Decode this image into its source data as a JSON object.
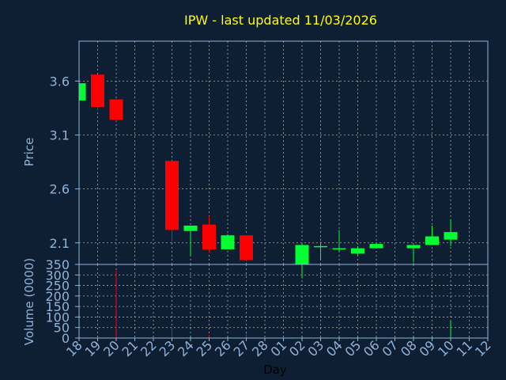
{
  "chart_data": {
    "type": "candlestick",
    "title": "IPW - last updated 11/03/2026",
    "xlabel": "Day",
    "ylabel": "Price",
    "volume_label": "Volume (0000)",
    "grid": true,
    "colors": {
      "background": "#0f1f33",
      "title": "#ffff00",
      "axis_text": "#8fb3d9",
      "up": "#00ff33",
      "down": "#ff0000",
      "grid": "#aaaaaa",
      "plot_border": "#8fb3d9"
    },
    "x_ticks": [
      "18",
      "19",
      "20",
      "21",
      "22",
      "23",
      "24",
      "25",
      "26",
      "27",
      "28",
      "01",
      "02",
      "03",
      "04",
      "05",
      "06",
      "07",
      "08",
      "09",
      "10",
      "11",
      "12"
    ],
    "price_ticks": [
      "2.1",
      "2.6",
      "3.1",
      "3.6"
    ],
    "price_ylim": [
      1.9,
      3.97
    ],
    "volume_ticks": [
      "0",
      "50",
      "100",
      "150",
      "200",
      "250",
      "300",
      "350"
    ],
    "volume_ylim": [
      0,
      350
    ],
    "candles": [
      {
        "x": 0,
        "open": 3.42,
        "high": 3.6,
        "low": 3.4,
        "close": 3.58,
        "volume": 0
      },
      {
        "x": 1,
        "open": 3.66,
        "high": 3.66,
        "low": 3.33,
        "close": 3.36,
        "volume": 2
      },
      {
        "x": 2,
        "open": 3.43,
        "high": 3.43,
        "low": 3.23,
        "close": 3.24,
        "volume": 320
      },
      {
        "x": 5,
        "open": 2.86,
        "high": 2.86,
        "low": 2.1,
        "close": 2.22,
        "volume": 50
      },
      {
        "x": 6,
        "open": 2.21,
        "high": 2.26,
        "low": 1.98,
        "close": 2.26,
        "volume": 10
      },
      {
        "x": 7,
        "open": 2.27,
        "high": 2.35,
        "low": 2.01,
        "close": 2.04,
        "volume": 15
      },
      {
        "x": 8,
        "open": 2.04,
        "high": 2.18,
        "low": 2.04,
        "close": 2.17,
        "volume": 5
      },
      {
        "x": 9,
        "open": 2.17,
        "high": 2.17,
        "low": 1.93,
        "close": 1.94,
        "volume": 20
      },
      {
        "x": 12,
        "open": 1.9,
        "high": 2.1,
        "low": 1.77,
        "close": 2.08,
        "volume": 8
      },
      {
        "x": 13,
        "open": 2.07,
        "high": 2.11,
        "low": 1.94,
        "close": 2.07,
        "volume": 3
      },
      {
        "x": 14,
        "open": 2.04,
        "high": 2.22,
        "low": 2.02,
        "close": 2.05,
        "volume": 5
      },
      {
        "x": 15,
        "open": 2.0,
        "high": 2.07,
        "low": 1.99,
        "close": 2.05,
        "volume": 4
      },
      {
        "x": 16,
        "open": 2.05,
        "high": 2.09,
        "low": 2.05,
        "close": 2.09,
        "volume": 3
      },
      {
        "x": 18,
        "open": 2.05,
        "high": 2.08,
        "low": 1.92,
        "close": 2.08,
        "volume": 5
      },
      {
        "x": 19,
        "open": 2.08,
        "high": 2.26,
        "low": 2.08,
        "close": 2.16,
        "volume": 6
      },
      {
        "x": 20,
        "open": 2.13,
        "high": 2.32,
        "low": 2.07,
        "close": 2.2,
        "volume": 85
      }
    ]
  }
}
